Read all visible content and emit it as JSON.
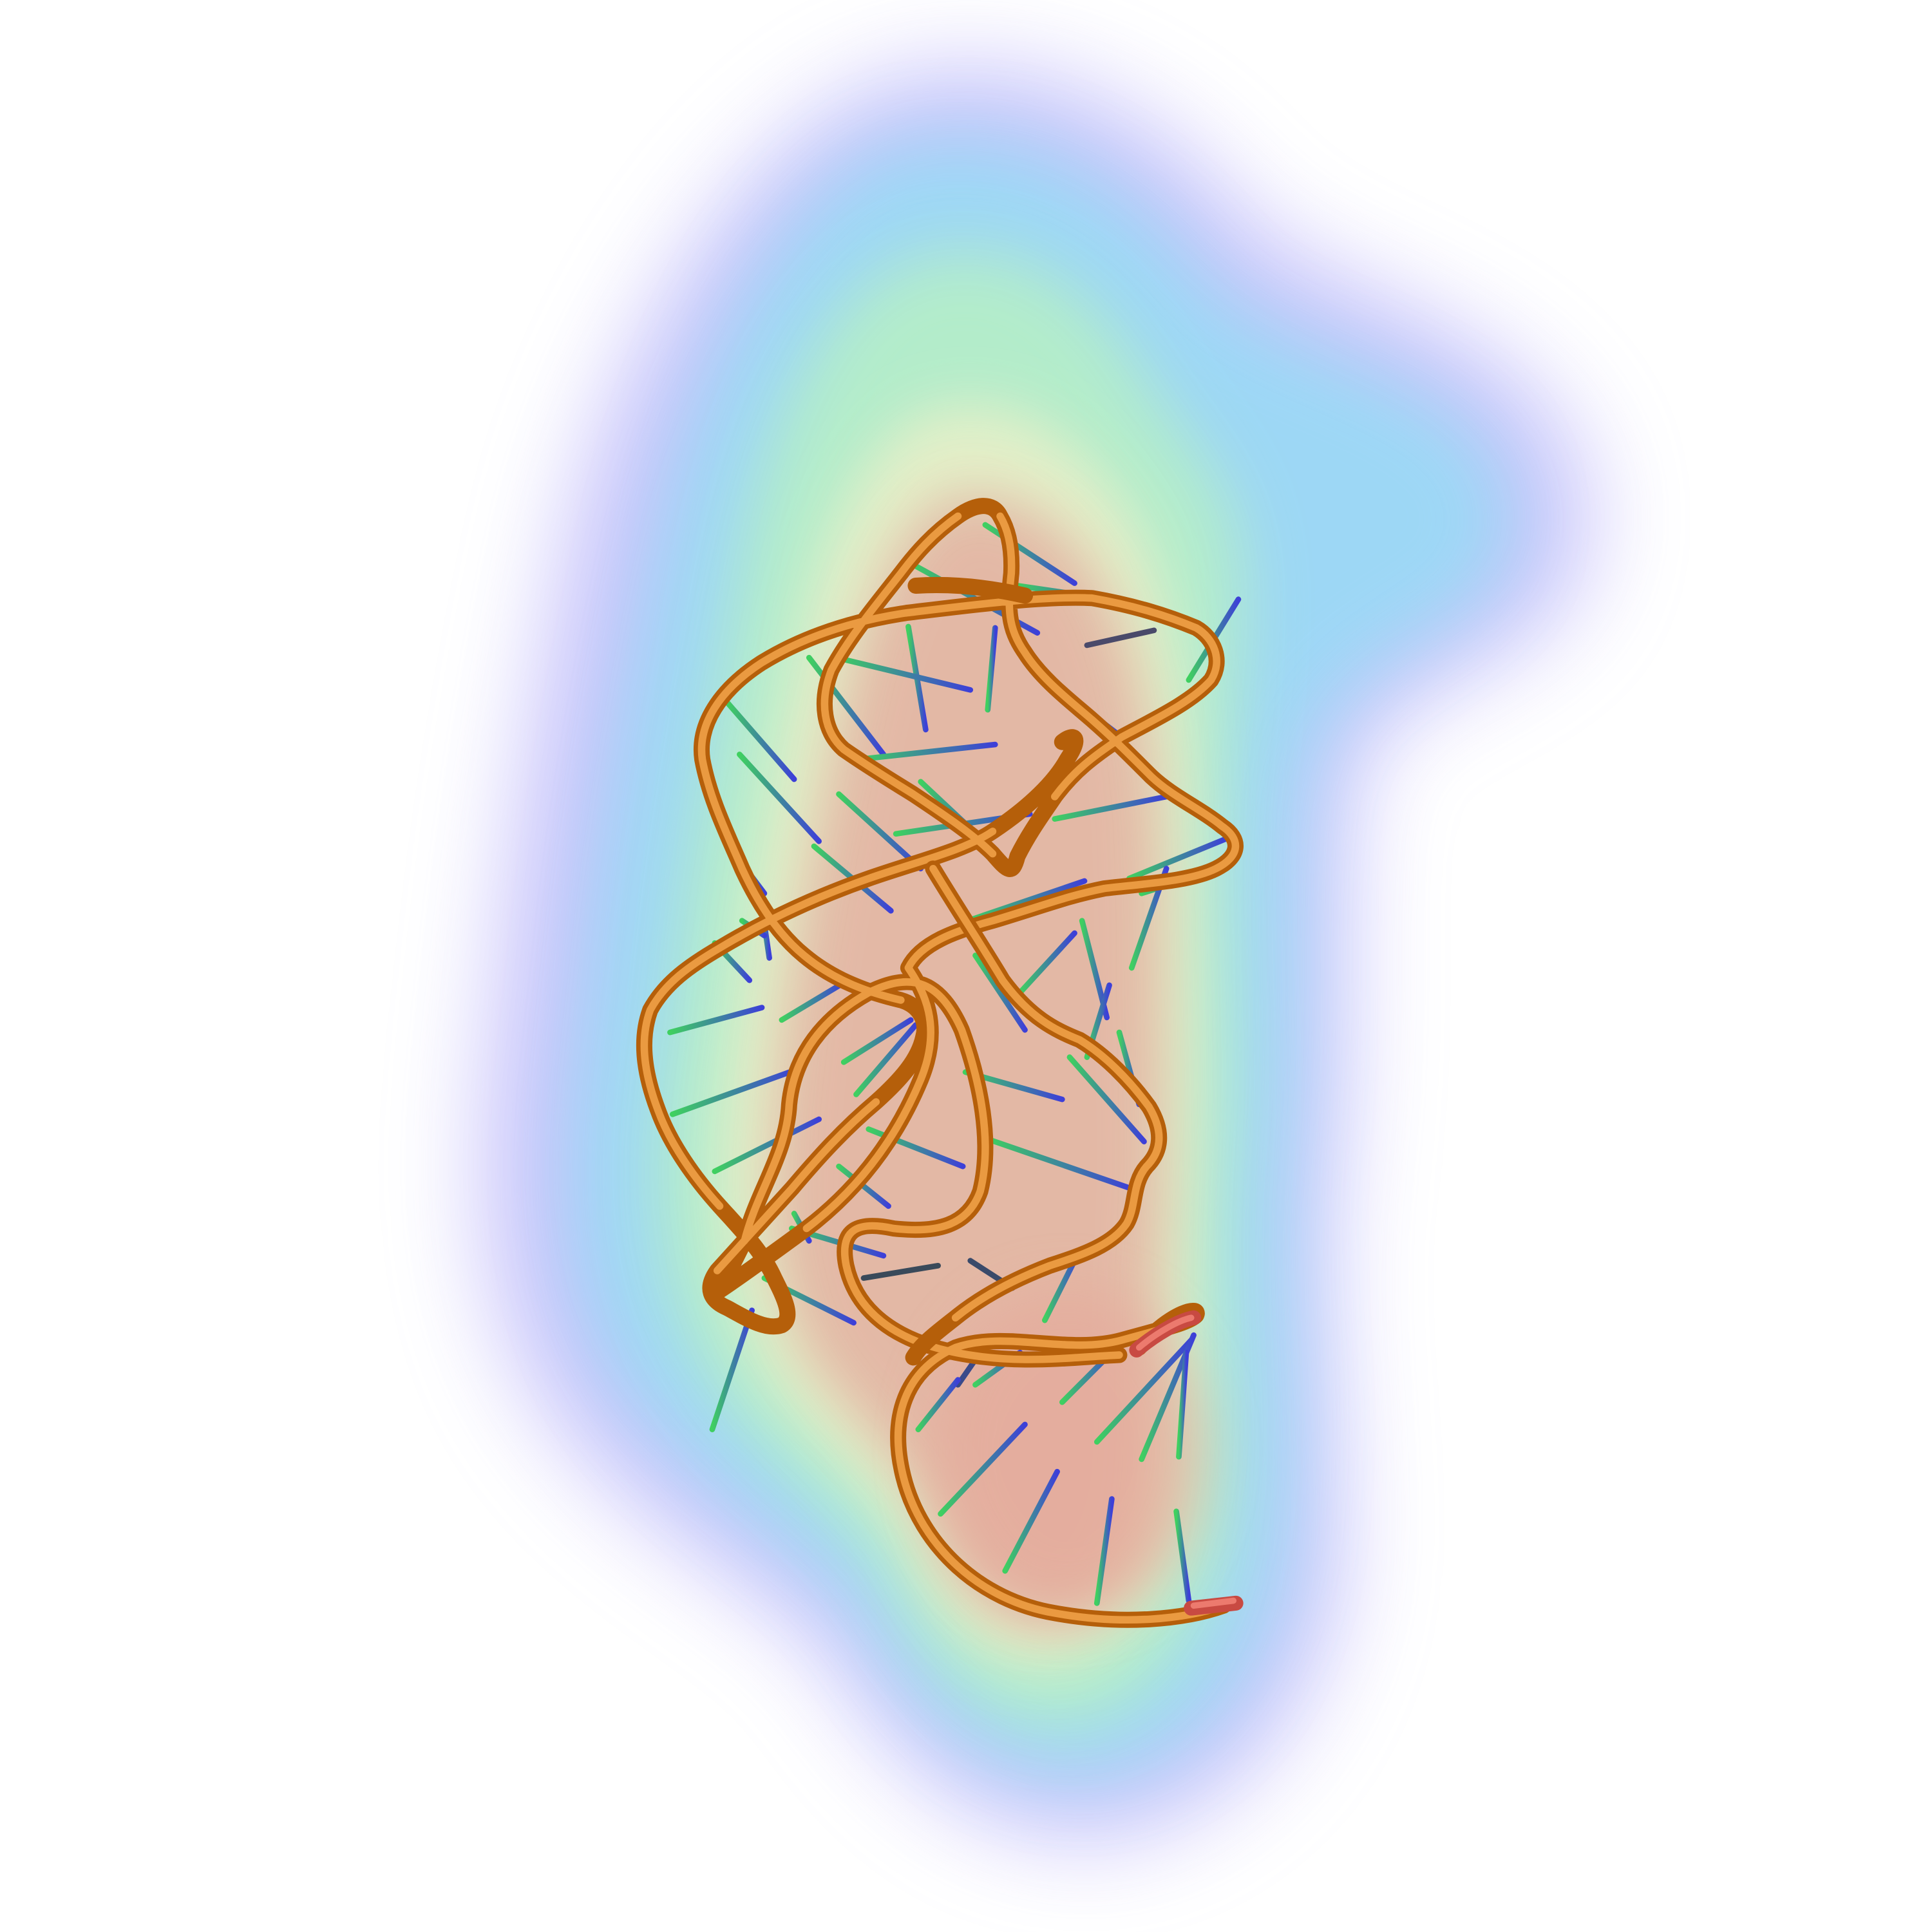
{
  "image": {
    "subject": "rna-tertiary-structure-render",
    "representation": [
      "cartoon-backbone-tube",
      "nucleotide-sticks",
      "translucent-electrostatic-surface"
    ],
    "colors": {
      "background": "#ffffff",
      "backbone": "#d97a12",
      "backbone_highlight": "#f3a54a",
      "backbone_terminus": "#d8524a",
      "base_green": "#3fd060",
      "base_blue": "#3d3fd8",
      "surface_core": "#e7a99a",
      "surface_mid": "#b9eec7",
      "surface_cyan": "#8fdcf2",
      "surface_edge": "#8f86f6"
    }
  }
}
